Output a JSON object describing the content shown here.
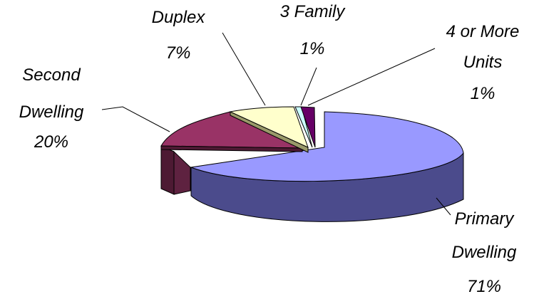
{
  "chart_data": {
    "type": "pie",
    "style": "3d-exploded",
    "slices": [
      {
        "name": "Primary Dwelling",
        "value": 71,
        "label": "71%",
        "color": "#9999FF",
        "side_color": "#4B4B8C"
      },
      {
        "name": "Second Dwelling",
        "value": 20,
        "label": "20%",
        "color": "#993366",
        "side_color": "#4D1A33"
      },
      {
        "name": "Duplex",
        "value": 7,
        "label": "7%",
        "color": "#FFFFCC",
        "side_color": "#9A9A6A"
      },
      {
        "name": "3 Family",
        "value": 1,
        "label": "1%",
        "color": "#CCFFFF",
        "side_color": "#5F8080"
      },
      {
        "name": "4 or More Units",
        "value": 1,
        "label": "1%",
        "color": "#660066",
        "side_color": "#330033"
      }
    ],
    "label_lines": {
      "primary": [
        "Primary",
        "Dwelling"
      ],
      "second": [
        "Second",
        "Dwelling"
      ],
      "duplex": [
        "Duplex"
      ],
      "three_family": [
        "3 Family"
      ],
      "four_more": [
        "4 or More",
        "Units"
      ]
    }
  }
}
